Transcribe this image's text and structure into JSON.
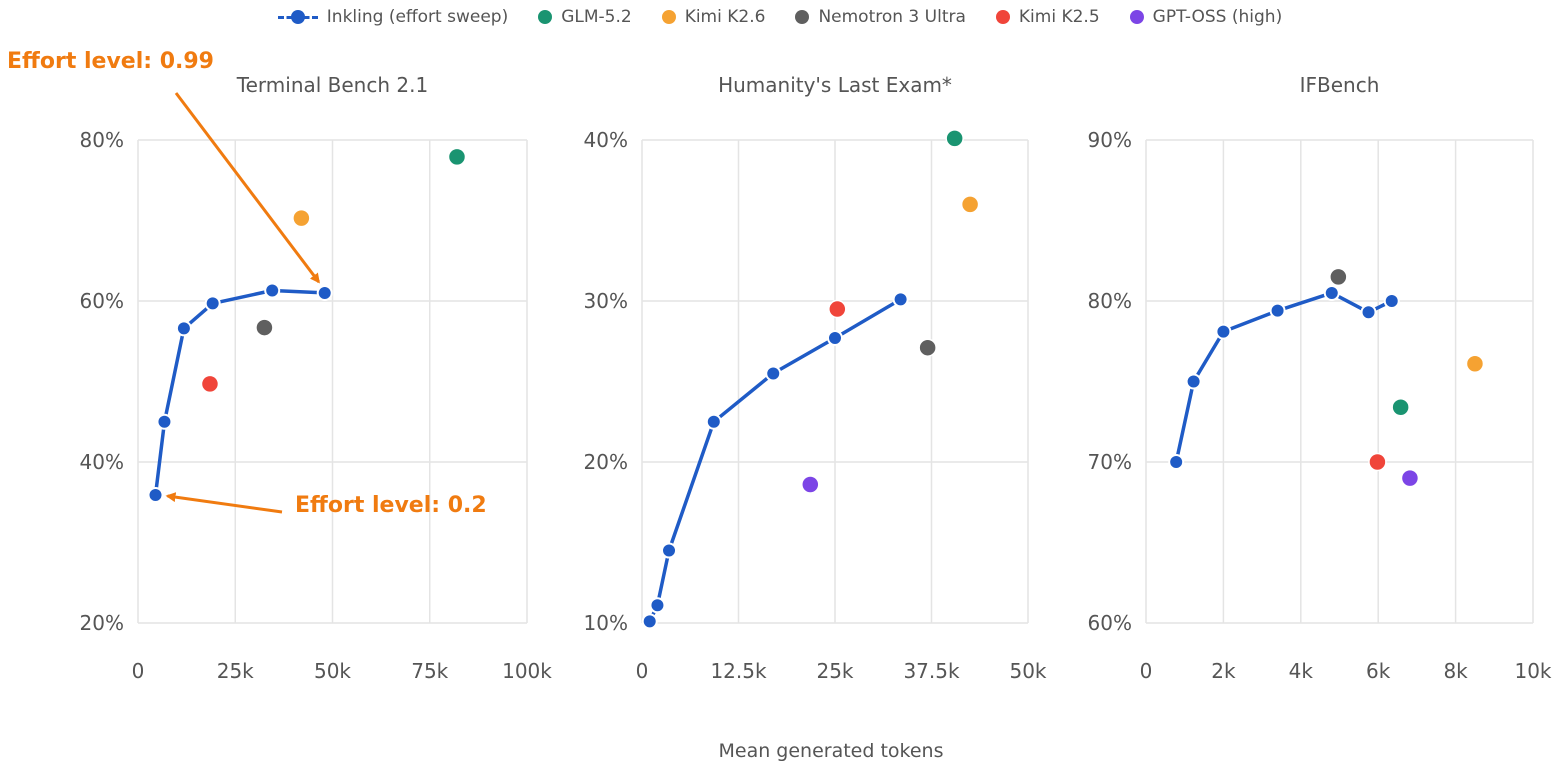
{
  "colors": {
    "Inkling (effort sweep)": "#1f5bc6",
    "GLM-5.2": "#1a9471",
    "Kimi K2.6": "#f5a232",
    "Nemotron 3 Ultra": "#5f5f5f",
    "Kimi K2.5": "#f0453a",
    "GPT-OSS (high)": "#7c45e6",
    "annotation": "#f07b10",
    "grid": "#e4e4e4"
  },
  "legend": [
    "Inkling (effort sweep)",
    "GLM-5.2",
    "Kimi K2.6",
    "Nemotron 3 Ultra",
    "Kimi K2.5",
    "GPT-OSS (high)"
  ],
  "xlabel": "Mean generated tokens",
  "chart_data": [
    {
      "type": "scatter",
      "title": "Terminal Bench 2.1",
      "xlim": [
        0,
        100000
      ],
      "ylim": [
        20,
        80
      ],
      "xticks": [
        0,
        25000,
        50000,
        75000,
        100000
      ],
      "xticklabels": [
        "0",
        "25k",
        "50k",
        "75k",
        "100k"
      ],
      "yticks": [
        20,
        40,
        60,
        80
      ],
      "yticklabels": [
        "20%",
        "40%",
        "60%",
        "80%"
      ],
      "grid": true,
      "sweep": {
        "name": "Inkling (effort sweep)",
        "x": [
          4500,
          6800,
          11800,
          19200,
          34500,
          48000
        ],
        "y": [
          35.9,
          45.0,
          56.6,
          59.7,
          61.3,
          61.0
        ]
      },
      "points": [
        {
          "name": "GLM-5.2",
          "x": 82000,
          "y": 77.9
        },
        {
          "name": "Kimi K2.6",
          "x": 42000,
          "y": 70.3
        },
        {
          "name": "Nemotron 3 Ultra",
          "x": 32500,
          "y": 56.7
        },
        {
          "name": "Kimi K2.5",
          "x": 18500,
          "y": 49.7
        }
      ],
      "annotations": [
        {
          "text": "Effort level: 0.99",
          "target_x": 48000,
          "target_y": 61.0
        },
        {
          "text": "Effort level: 0.2",
          "target_x": 4500,
          "target_y": 35.9
        }
      ]
    },
    {
      "type": "scatter",
      "title": "Humanity's Last Exam*",
      "xlim": [
        0,
        50000
      ],
      "ylim": [
        10,
        40
      ],
      "xticks": [
        0,
        12500,
        25000,
        37500,
        50000
      ],
      "xticklabels": [
        "0",
        "12.5k",
        "25k",
        "37.5k",
        "50k"
      ],
      "yticks": [
        10,
        20,
        30,
        40
      ],
      "yticklabels": [
        "10%",
        "20%",
        "30%",
        "40%"
      ],
      "grid": true,
      "sweep": {
        "name": "Inkling (effort sweep)",
        "x": [
          1000,
          2000,
          3500,
          9300,
          17000,
          25000,
          33500
        ],
        "y": [
          10.1,
          11.1,
          14.5,
          22.5,
          25.5,
          27.7,
          30.1
        ]
      },
      "points": [
        {
          "name": "GLM-5.2",
          "x": 40500,
          "y": 40.1
        },
        {
          "name": "Kimi K2.6",
          "x": 42500,
          "y": 36.0
        },
        {
          "name": "Nemotron 3 Ultra",
          "x": 37000,
          "y": 27.1
        },
        {
          "name": "Kimi K2.5",
          "x": 25300,
          "y": 29.5
        },
        {
          "name": "GPT-OSS (high)",
          "x": 21800,
          "y": 18.6
        }
      ]
    },
    {
      "type": "scatter",
      "title": "IFBench",
      "xlim": [
        0,
        10000
      ],
      "ylim": [
        60,
        90
      ],
      "xticks": [
        0,
        2000,
        4000,
        6000,
        8000,
        10000
      ],
      "xticklabels": [
        "0",
        "2k",
        "4k",
        "6k",
        "8k",
        "10k"
      ],
      "yticks": [
        60,
        70,
        80,
        90
      ],
      "yticklabels": [
        "60%",
        "70%",
        "80%",
        "90%"
      ],
      "grid": true,
      "sweep": {
        "name": "Inkling (effort sweep)",
        "x": [
          780,
          1230,
          2000,
          3400,
          4800,
          5750,
          6350
        ],
        "y": [
          70.0,
          75.0,
          78.1,
          79.4,
          80.5,
          79.3,
          80.0
        ]
      },
      "points": [
        {
          "name": "Nemotron 3 Ultra",
          "x": 4970,
          "y": 81.5
        },
        {
          "name": "Kimi K2.6",
          "x": 8500,
          "y": 76.1
        },
        {
          "name": "GLM-5.2",
          "x": 6580,
          "y": 73.4
        },
        {
          "name": "Kimi K2.5",
          "x": 5980,
          "y": 70.0
        },
        {
          "name": "GPT-OSS (high)",
          "x": 6820,
          "y": 69.0
        }
      ]
    }
  ]
}
